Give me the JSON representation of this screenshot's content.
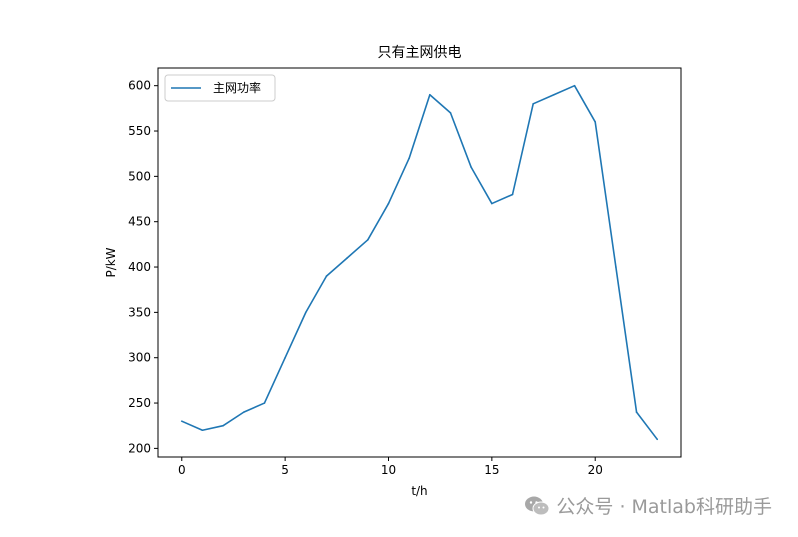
{
  "chart_data": {
    "type": "line",
    "title": "只有主网供电",
    "xlabel": "t/h",
    "ylabel": "P/kW",
    "x": [
      0,
      1,
      2,
      3,
      4,
      5,
      6,
      7,
      8,
      9,
      10,
      11,
      12,
      13,
      14,
      15,
      16,
      17,
      18,
      19,
      20,
      21,
      22,
      23
    ],
    "series": [
      {
        "name": "主网功率",
        "color": "#1f77b4",
        "values": [
          230,
          220,
          225,
          240,
          250,
          300,
          350,
          390,
          410,
          430,
          470,
          520,
          590,
          570,
          510,
          470,
          480,
          580,
          590,
          600,
          560,
          400,
          240,
          210
        ]
      }
    ],
    "xlim": [
      -1.15,
      24.15
    ],
    "ylim": [
      190.5,
      619.5
    ],
    "xticks": [
      0,
      5,
      10,
      15,
      20
    ],
    "yticks": [
      200,
      250,
      300,
      350,
      400,
      450,
      500,
      550,
      600
    ],
    "grid": false,
    "legend_position": "upper-left"
  },
  "watermark": {
    "text": "公众号 · Matlab科研助手",
    "icon": "wechat-icon",
    "color": "#9a9a9a"
  }
}
